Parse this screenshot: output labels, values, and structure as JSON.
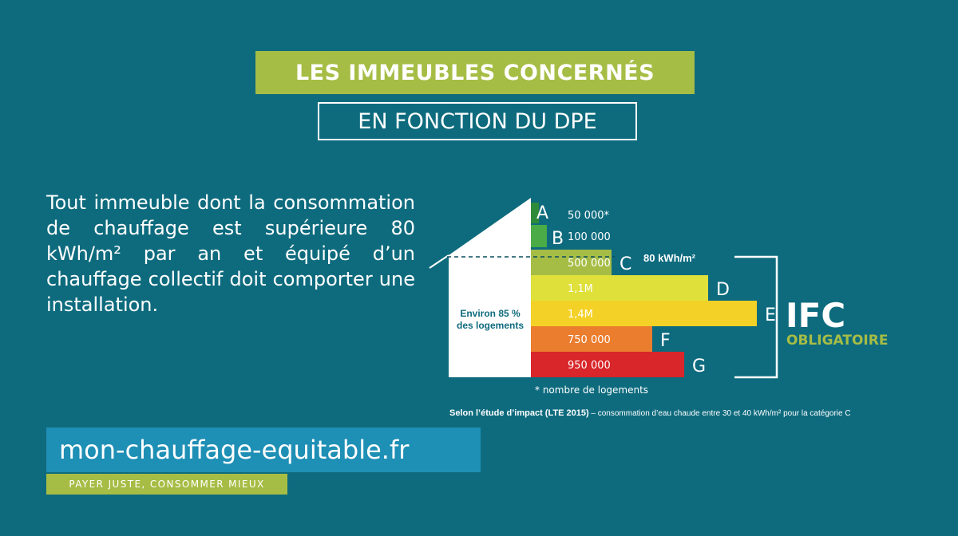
{
  "header": {
    "title": "LES IMMEUBLES CONCERNÉS",
    "subtitle": "EN FONCTION DU DPE"
  },
  "body": {
    "text": "Tout immeuble dont la consommation de chauffage est supérieure 80 kWh/m² par an et équipé d’un chauffage collectif doit comporter une installation."
  },
  "chart_data": {
    "type": "bar",
    "categories": [
      "A",
      "B",
      "C",
      "D",
      "E",
      "F",
      "G"
    ],
    "values": [
      50000,
      100000,
      500000,
      1100000,
      1400000,
      750000,
      950000
    ],
    "value_labels": [
      "50 000*",
      "100 000",
      "500 000",
      "1,1M",
      "1,4M",
      "750 000",
      "950 000"
    ],
    "colors": [
      "#2e8b3a",
      "#4aab47",
      "#a6bd45",
      "#dfe03a",
      "#f4d126",
      "#ea7d2e",
      "#d8262a"
    ],
    "threshold_label": "80 kWh/m²",
    "house_label": [
      "Environ 85 %",
      "des logements"
    ],
    "bracket_title": "IFC",
    "bracket_subtitle": "OBLIGATOIRE",
    "footnote": "* nombre de logements",
    "grid": false,
    "accent_color": "#a6bd45"
  },
  "source": {
    "bold": "Selon l’étude d’impact (LTE 2015)",
    "rest": " – consommation d’eau chaude entre 30 et 40 kWh/m² pour la catégorie C"
  },
  "footer": {
    "site": "mon-chauffage-equitable.fr",
    "tagline": "PAYER JUSTE, CONSOMMER MIEUX"
  }
}
